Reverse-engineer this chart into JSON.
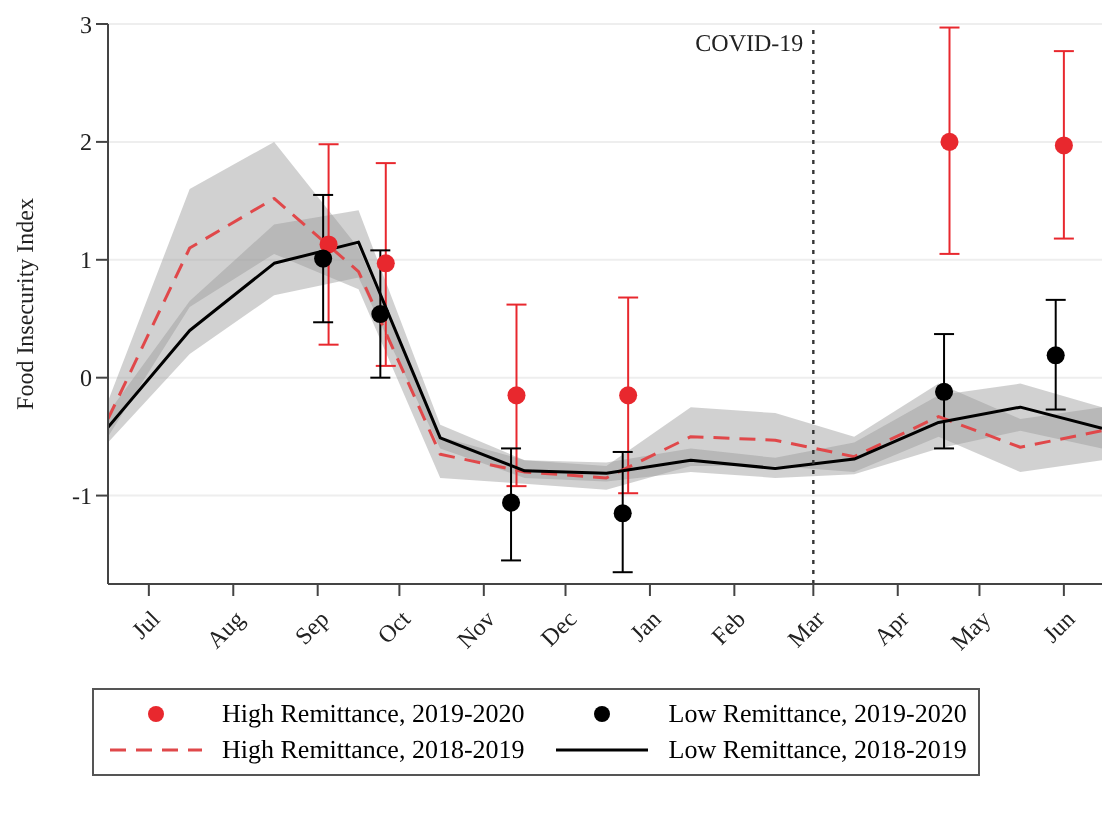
{
  "chart_data": {
    "type": "line",
    "ylabel": "Food Insecurity Index",
    "xlim": [
      "2019-06-16",
      "2020-06-15"
    ],
    "xticks": [
      {
        "value": "2019-07-01",
        "label": "Jul"
      },
      {
        "value": "2019-08-01",
        "label": "Aug"
      },
      {
        "value": "2019-09-01",
        "label": "Sep"
      },
      {
        "value": "2019-10-01",
        "label": "Oct"
      },
      {
        "value": "2019-11-01",
        "label": "Nov"
      },
      {
        "value": "2019-12-01",
        "label": "Dec"
      },
      {
        "value": "2020-01-01",
        "label": "Jan"
      },
      {
        "value": "2020-02-01",
        "label": "Feb"
      },
      {
        "value": "2020-03-01",
        "label": "Mar"
      },
      {
        "value": "2020-04-01",
        "label": "Apr"
      },
      {
        "value": "2020-05-01",
        "label": "May"
      },
      {
        "value": "2020-06-01",
        "label": "Jun"
      }
    ],
    "ylim": [
      -1.75,
      3
    ],
    "yticks": [
      -1,
      0,
      1,
      2,
      3
    ],
    "grid": "y",
    "legend": "bottom",
    "ref_lines": [
      {
        "axis": "x",
        "value": "2020-03-01",
        "label": "COVID-19",
        "line_style": "dotted",
        "color": "#333333"
      }
    ],
    "series": [
      {
        "name": "High Remittance, 2019-2020",
        "type": "scatter",
        "marker": "circle",
        "color": "#e8282e",
        "x": [
          "2019-09-05",
          "2019-09-26",
          "2019-11-13",
          "2019-12-24",
          "2020-04-20",
          "2020-06-01"
        ],
        "values": [
          1.13,
          0.97,
          -0.15,
          -0.15,
          2.0,
          1.97
        ],
        "errors": [
          [
            0.28,
            1.98
          ],
          [
            0.1,
            1.82
          ],
          [
            -0.92,
            0.62
          ],
          [
            -0.98,
            0.68
          ],
          [
            1.05,
            2.97
          ],
          [
            1.18,
            2.77
          ]
        ]
      },
      {
        "name": "Low Remittance, 2019-2020",
        "type": "scatter",
        "marker": "circle",
        "color": "#000000",
        "x": [
          "2019-09-03",
          "2019-09-24",
          "2019-11-11",
          "2019-12-22",
          "2020-04-18",
          "2020-05-29"
        ],
        "values": [
          1.01,
          0.54,
          -1.06,
          -1.15,
          -0.12,
          0.19
        ],
        "errors": [
          [
            0.47,
            1.55
          ],
          [
            0.0,
            1.08
          ],
          [
            -1.55,
            -0.6
          ],
          [
            -1.65,
            -0.63
          ],
          [
            -0.6,
            0.37
          ],
          [
            -0.27,
            0.66
          ]
        ]
      },
      {
        "name": "High Remittance, 2018-2019",
        "marker": "none",
        "line_style": "dashed",
        "color": "#e0484a",
        "x": [
          "2019-06-16",
          "2019-07-16",
          "2019-08-16",
          "2019-09-16",
          "2019-10-16",
          "2019-11-16",
          "2019-12-16",
          "2020-01-16",
          "2020-02-16",
          "2020-03-16",
          "2020-04-16",
          "2020-05-16",
          "2020-06-15"
        ],
        "values": [
          -0.35,
          1.1,
          1.52,
          0.9,
          -0.65,
          -0.8,
          -0.85,
          -0.5,
          -0.53,
          -0.67,
          -0.33,
          -0.59,
          -0.45
        ],
        "lower": [
          -0.5,
          0.6,
          1.05,
          0.75,
          -0.85,
          -0.9,
          -0.95,
          -0.75,
          -0.75,
          -0.8,
          -0.5,
          -0.8,
          -0.7
        ],
        "upper": [
          -0.2,
          1.6,
          2.0,
          1.1,
          -0.5,
          -0.7,
          -0.75,
          -0.25,
          -0.3,
          -0.5,
          -0.05,
          -0.35,
          -0.25
        ]
      },
      {
        "name": "Low Remittance, 2018-2019",
        "marker": "none",
        "line_style": "solid",
        "color": "#000000",
        "x": [
          "2019-06-16",
          "2019-07-16",
          "2019-08-16",
          "2019-09-16",
          "2019-10-16",
          "2019-11-16",
          "2019-12-16",
          "2020-01-16",
          "2020-02-16",
          "2020-03-16",
          "2020-04-16",
          "2020-05-16",
          "2020-06-15"
        ],
        "values": [
          -0.42,
          0.4,
          0.97,
          1.15,
          -0.51,
          -0.79,
          -0.81,
          -0.7,
          -0.77,
          -0.69,
          -0.38,
          -0.25,
          -0.43
        ],
        "lower": [
          -0.55,
          0.2,
          0.7,
          0.85,
          -0.6,
          -0.85,
          -0.88,
          -0.8,
          -0.85,
          -0.82,
          -0.6,
          -0.45,
          -0.6
        ],
        "upper": [
          -0.3,
          0.65,
          1.3,
          1.42,
          -0.4,
          -0.7,
          -0.72,
          -0.6,
          -0.68,
          -0.55,
          -0.15,
          -0.05,
          -0.25
        ]
      }
    ]
  }
}
